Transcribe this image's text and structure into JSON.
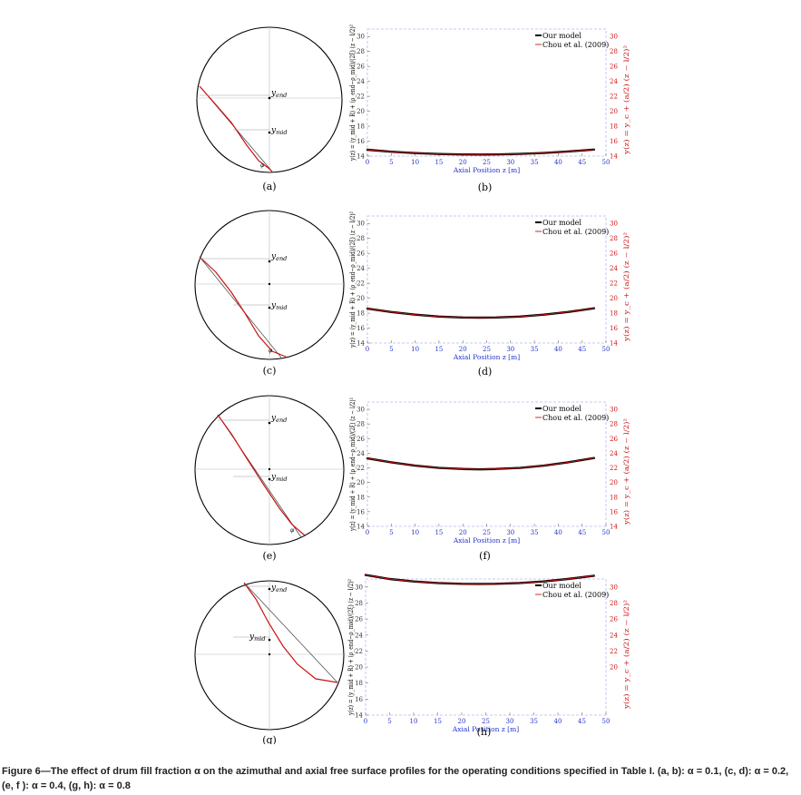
{
  "chart_data": [
    {
      "type": "diagram",
      "panel_label": "(a)",
      "labels": {
        "end": "y_end",
        "mid": "y_mid",
        "angle": "φ"
      },
      "fill_fraction": 0.1
    },
    {
      "type": "line",
      "panel_label": "(b)",
      "xlabel": "Axial Position z [m]",
      "ylabel_left": "y(z) = (y_mid + R) + (ρ_end−ρ_mid)/(2ξ) (z − l/2)²",
      "ylabel_right": "y(z) = y_c + (a/2) (z − l/2)²",
      "xlim": [
        0,
        50
      ],
      "ylim": [
        14,
        31
      ],
      "xticks": [
        0,
        5,
        10,
        15,
        20,
        25,
        30,
        35,
        40,
        45,
        50
      ],
      "yticks_left": [
        14,
        16,
        18,
        20,
        22,
        24,
        26,
        28,
        30
      ],
      "yticks_right": [
        14,
        16,
        18,
        20,
        22,
        24,
        26,
        28,
        30
      ],
      "grid": false,
      "legend_position": "top-right",
      "series": [
        {
          "name": "Our model",
          "color": "#000000",
          "x": [
            0,
            5,
            10,
            15,
            20,
            23.5,
            27,
            32,
            37,
            42,
            47.5
          ],
          "y": [
            14.85,
            14.59,
            14.4,
            14.28,
            14.22,
            14.21,
            14.22,
            14.29,
            14.42,
            14.61,
            14.87
          ]
        },
        {
          "name": "Chou et al. (2009)",
          "color": "#cc1111",
          "x": [
            0,
            5,
            10,
            15,
            20,
            23.5,
            27,
            32,
            37,
            42,
            47.5
          ],
          "y": [
            14.85,
            14.59,
            14.4,
            14.28,
            14.22,
            14.21,
            14.22,
            14.29,
            14.42,
            14.61,
            14.87
          ]
        }
      ]
    },
    {
      "type": "diagram",
      "panel_label": "(c)",
      "labels": {
        "end": "y_end",
        "mid": "y_mid",
        "angle": "φ"
      },
      "fill_fraction": 0.2
    },
    {
      "type": "line",
      "panel_label": "(d)",
      "xlabel": "Axial Position z [m]",
      "ylabel_left": "y(z) = (y_mid + R) + (ρ_end−ρ_mid)/(2ξ) (z − l/2)²",
      "ylabel_right": "y(z) = y_c + (a/2) (z − l/2)²",
      "xlim": [
        0,
        50
      ],
      "ylim": [
        14,
        31
      ],
      "xticks": [
        0,
        5,
        10,
        15,
        20,
        25,
        30,
        35,
        40,
        45,
        50
      ],
      "yticks_left": [
        14,
        16,
        18,
        20,
        22,
        24,
        26,
        28,
        30
      ],
      "yticks_right": [
        14,
        16,
        18,
        20,
        22,
        24,
        26,
        28,
        30
      ],
      "grid": false,
      "legend_position": "top-right",
      "series": [
        {
          "name": "Our model",
          "color": "#000000",
          "x": [
            0,
            5,
            10,
            15,
            20,
            23.5,
            27,
            32,
            37,
            42,
            47.5
          ],
          "y": [
            18.6,
            18.15,
            17.8,
            17.55,
            17.42,
            17.4,
            17.42,
            17.55,
            17.8,
            18.15,
            18.65
          ]
        },
        {
          "name": "Chou et al. (2009)",
          "color": "#cc1111",
          "x": [
            0,
            5,
            10,
            15,
            20,
            23.5,
            27,
            32,
            37,
            42,
            47.5
          ],
          "y": [
            18.6,
            18.15,
            17.8,
            17.55,
            17.42,
            17.4,
            17.42,
            17.55,
            17.8,
            18.15,
            18.65
          ]
        }
      ]
    },
    {
      "type": "diagram",
      "panel_label": "(e)",
      "labels": {
        "end": "y_end",
        "mid": "y_mid",
        "angle": "φ"
      },
      "fill_fraction": 0.4
    },
    {
      "type": "line",
      "panel_label": "(f)",
      "xlabel": "Axial Position z [m]",
      "ylabel_left": "y(z) = (y_mid + R) + (ρ_end−ρ_mid)/(2ξ) (z − l/2)²",
      "ylabel_right": "y(z) = y_c + (a/2) (z − l/2)²",
      "xlim": [
        0,
        50
      ],
      "ylim": [
        14,
        31
      ],
      "xticks": [
        0,
        5,
        10,
        15,
        20,
        25,
        30,
        35,
        40,
        45,
        50
      ],
      "yticks_left": [
        14,
        16,
        18,
        20,
        22,
        24,
        26,
        28,
        30
      ],
      "yticks_right": [
        14,
        16,
        18,
        20,
        22,
        24,
        26,
        28,
        30
      ],
      "grid": false,
      "legend_position": "top-right",
      "series": [
        {
          "name": "Our model",
          "color": "#000000",
          "x": [
            0,
            5,
            10,
            15,
            20,
            23.5,
            27,
            32,
            37,
            42,
            47.5
          ],
          "y": [
            23.3,
            22.75,
            22.3,
            22.0,
            21.85,
            21.8,
            21.85,
            22.0,
            22.3,
            22.75,
            23.35
          ]
        },
        {
          "name": "Chou et al. (2009)",
          "color": "#cc1111",
          "x": [
            0,
            5,
            10,
            15,
            20,
            23.5,
            27,
            32,
            37,
            42,
            47.5
          ],
          "y": [
            23.3,
            22.75,
            22.3,
            22.0,
            21.85,
            21.8,
            21.85,
            22.0,
            22.3,
            22.75,
            23.35
          ]
        }
      ]
    },
    {
      "type": "diagram",
      "panel_label": "(g)",
      "labels": {
        "end": "y_end",
        "mid": "y_mid",
        "angle": ""
      },
      "fill_fraction": 0.8
    },
    {
      "type": "line",
      "panel_label": "(h)",
      "xlabel": "Axial Position z [m]",
      "ylabel_left": "y(z) = (y_mid + R) + (ρ_end−ρ_mid)/(2ξ) (z − l/2)²",
      "ylabel_right": "y(z) = y_c + (a/2) (z − l/2)²",
      "xlim": [
        0,
        50
      ],
      "ylim": [
        14,
        31
      ],
      "xticks": [
        0,
        5,
        10,
        15,
        20,
        25,
        30,
        35,
        40,
        45,
        50
      ],
      "yticks_left": [
        14,
        16,
        18,
        20,
        22,
        24,
        26,
        28,
        30
      ],
      "yticks_right": [
        20,
        22,
        24,
        26,
        28,
        30
      ],
      "grid": false,
      "legend_position": "top-right",
      "series": [
        {
          "name": "Our model",
          "color": "#000000",
          "x": [
            0,
            5,
            10,
            15,
            20,
            23.5,
            27,
            32,
            37,
            42,
            47.5
          ],
          "y": [
            31.5,
            31.0,
            30.7,
            30.5,
            30.4,
            30.38,
            30.4,
            30.5,
            30.7,
            31.0,
            31.4
          ]
        },
        {
          "name": "Chou et al. (2009)",
          "color": "#cc1111",
          "x": [
            0,
            5,
            10,
            15,
            20,
            23.5,
            27,
            32,
            37,
            42,
            47.5
          ],
          "y": [
            31.5,
            31.0,
            30.7,
            30.5,
            30.4,
            30.38,
            30.4,
            30.5,
            30.7,
            31.0,
            31.4
          ]
        }
      ]
    }
  ],
  "caption": "Figure 6—The effect of drum fill fraction α on the azimuthal and axial free surface profiles for the operating conditions specified in Table I. (a, b): α = 0.1, (c, d): α = 0.2, (e, f ): α = 0.4, (g, h): α = 0.8"
}
